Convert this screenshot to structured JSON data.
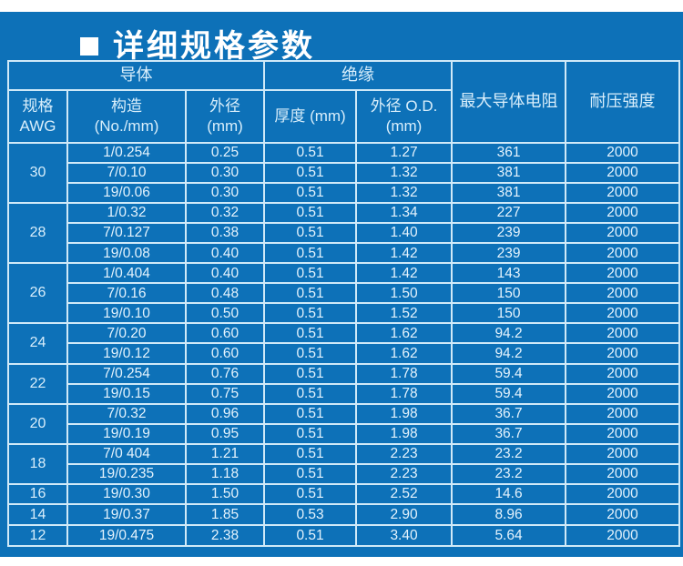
{
  "title": {
    "text": "详细规格参数"
  },
  "colors": {
    "panel_blue": "#0d71b8",
    "grid_line": "#cfe9f8",
    "header_text": "#d8eefb",
    "data_text": "#e4f3fd",
    "title_text": "#ffffff",
    "page_background": "#ffffff"
  },
  "table": {
    "header": {
      "conductor_group": "导体",
      "insulation_group": "绝缘",
      "spec": "规格\nAWG",
      "construction": "构造\n(No./mm)",
      "conductor_od": "外径\n(mm)",
      "thickness": "厚度 (mm)",
      "insulation_od": "外径 O.D.\n(mm)",
      "resistance": "最大导体电阻",
      "voltage": "耐压强度"
    },
    "groups": [
      {
        "awg": "30",
        "rows": [
          [
            "1/0.254",
            "0.25",
            "0.51",
            "1.27",
            "361",
            "2000"
          ],
          [
            "7/0.10",
            "0.30",
            "0.51",
            "1.32",
            "381",
            "2000"
          ],
          [
            "19/0.06",
            "0.30",
            "0.51",
            "1.32",
            "381",
            "2000"
          ]
        ]
      },
      {
        "awg": "28",
        "rows": [
          [
            "1/0.32",
            "0.32",
            "0.51",
            "1.34",
            "227",
            "2000"
          ],
          [
            "7/0.127",
            "0.38",
            "0.51",
            "1.40",
            "239",
            "2000"
          ],
          [
            "19/0.08",
            "0.40",
            "0.51",
            "1.42",
            "239",
            "2000"
          ]
        ]
      },
      {
        "awg": "26",
        "rows": [
          [
            "1/0.404",
            "0.40",
            "0.51",
            "1.42",
            "143",
            "2000"
          ],
          [
            "7/0.16",
            "0.48",
            "0.51",
            "1.50",
            "150",
            "2000"
          ],
          [
            "19/0.10",
            "0.50",
            "0.51",
            "1.52",
            "150",
            "2000"
          ]
        ]
      },
      {
        "awg": "24",
        "rows": [
          [
            "7/0.20",
            "0.60",
            "0.51",
            "1.62",
            "94.2",
            "2000"
          ],
          [
            "19/0.12",
            "0.60",
            "0.51",
            "1.62",
            "94.2",
            "2000"
          ]
        ]
      },
      {
        "awg": "22",
        "rows": [
          [
            "7/0.254",
            "0.76",
            "0.51",
            "1.78",
            "59.4",
            "2000"
          ],
          [
            "19/0.15",
            "0.75",
            "0.51",
            "1.78",
            "59.4",
            "2000"
          ]
        ]
      },
      {
        "awg": "20",
        "rows": [
          [
            "7/0.32",
            "0.96",
            "0.51",
            "1.98",
            "36.7",
            "2000"
          ],
          [
            "19/0.19",
            "0.95",
            "0.51",
            "1.98",
            "36.7",
            "2000"
          ]
        ]
      },
      {
        "awg": "18",
        "rows": [
          [
            "7/0 404",
            "1.21",
            "0.51",
            "2.23",
            "23.2",
            "2000"
          ],
          [
            "19/0.235",
            "1.18",
            "0.51",
            "2.23",
            "23.2",
            "2000"
          ]
        ]
      },
      {
        "awg": "16",
        "rows": [
          [
            "19/0.30",
            "1.50",
            "0.51",
            "2.52",
            "14.6",
            "2000"
          ]
        ]
      },
      {
        "awg": "14",
        "rows": [
          [
            "19/0.37",
            "1.85",
            "0.53",
            "2.90",
            "8.96",
            "2000"
          ]
        ]
      },
      {
        "awg": "12",
        "rows": [
          [
            "19/0.475",
            "2.38",
            "0.51",
            "3.40",
            "5.64",
            "2000"
          ]
        ]
      }
    ]
  }
}
